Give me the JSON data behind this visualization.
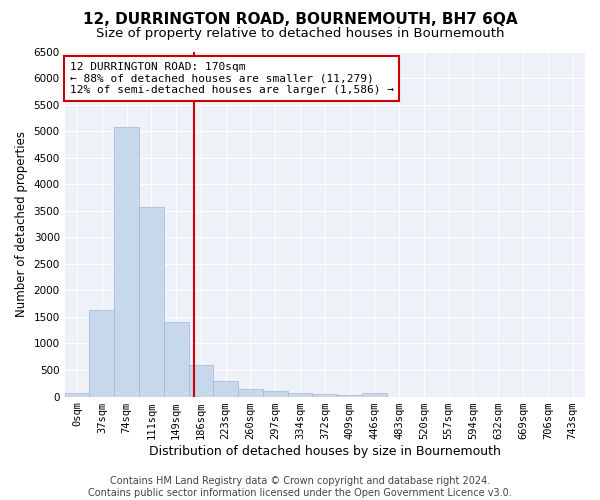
{
  "title": "12, DURRINGTON ROAD, BOURNEMOUTH, BH7 6QA",
  "subtitle": "Size of property relative to detached houses in Bournemouth",
  "xlabel": "Distribution of detached houses by size in Bournemouth",
  "ylabel": "Number of detached properties",
  "bar_labels": [
    "0sqm",
    "37sqm",
    "74sqm",
    "111sqm",
    "149sqm",
    "186sqm",
    "223sqm",
    "260sqm",
    "297sqm",
    "334sqm",
    "372sqm",
    "409sqm",
    "446sqm",
    "483sqm",
    "520sqm",
    "557sqm",
    "594sqm",
    "632sqm",
    "669sqm",
    "706sqm",
    "743sqm"
  ],
  "bar_values": [
    70,
    1640,
    5080,
    3580,
    1410,
    590,
    300,
    150,
    110,
    75,
    50,
    30,
    60,
    0,
    0,
    0,
    0,
    0,
    0,
    0,
    0
  ],
  "bar_color": "#c8d8ec",
  "bar_edgecolor": "#a0b8d8",
  "vline_color": "#cc0000",
  "vline_pos": 4.73,
  "ylim": [
    0,
    6500
  ],
  "yticks": [
    0,
    500,
    1000,
    1500,
    2000,
    2500,
    3000,
    3500,
    4000,
    4500,
    5000,
    5500,
    6000,
    6500
  ],
  "annotation_line1": "12 DURRINGTON ROAD: 170sqm",
  "annotation_line2": "← 88% of detached houses are smaller (11,279)",
  "annotation_line3": "12% of semi-detached houses are larger (1,586) →",
  "annotation_box_color": "#ffffff",
  "annotation_box_edgecolor": "#cc0000",
  "footer1": "Contains HM Land Registry data © Crown copyright and database right 2024.",
  "footer2": "Contains public sector information licensed under the Open Government Licence v3.0.",
  "plot_bg_color": "#eef2f8",
  "grid_color": "#ffffff",
  "title_fontsize": 11,
  "subtitle_fontsize": 9.5,
  "xlabel_fontsize": 9,
  "ylabel_fontsize": 8.5,
  "tick_fontsize": 7.5,
  "annotation_fontsize": 8,
  "footer_fontsize": 7
}
